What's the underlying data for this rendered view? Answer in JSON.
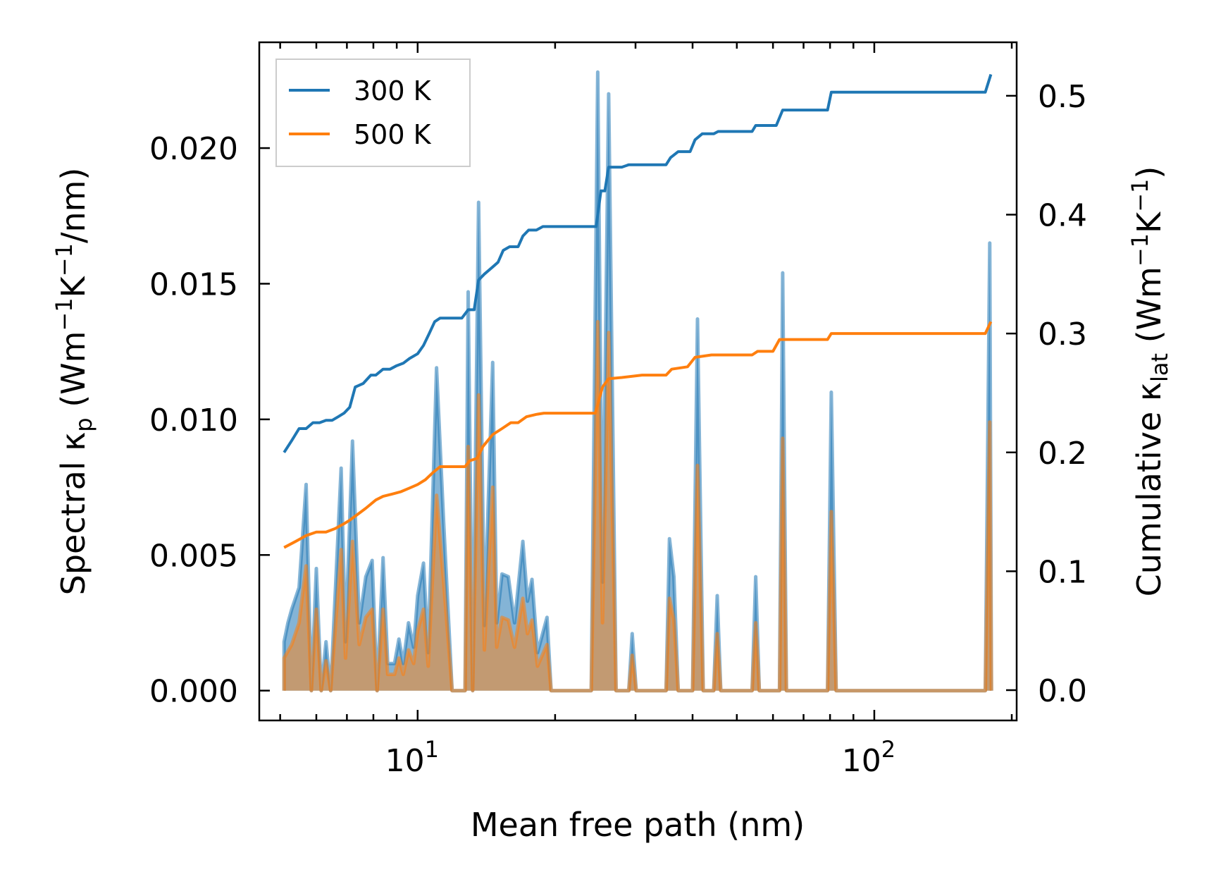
{
  "chart_data": {
    "type": "line",
    "title": "",
    "xlabel": "Mean free path (nm)",
    "x_scale": "log",
    "xlim": [
      4.5,
      205
    ],
    "x_ticks": [
      {
        "value": 10,
        "base": "10",
        "exp": "1"
      },
      {
        "value": 100,
        "base": "10",
        "exp": "2"
      }
    ],
    "y_left": {
      "label_parts": [
        "Spectral κ",
        "p",
        " (Wm",
        "−1",
        "K",
        "−1",
        "/nm)"
      ],
      "lim": [
        -0.0011,
        0.0239
      ],
      "ticks": [
        "0.000",
        "0.005",
        "0.010",
        "0.015",
        "0.020"
      ]
    },
    "y_right": {
      "label_parts": [
        "Cumulative κ",
        "lat",
        " (Wm",
        "−1",
        "K",
        "−1",
        ")"
      ],
      "lim": [
        -0.0255,
        0.545
      ],
      "ticks": [
        "0.0",
        "0.1",
        "0.2",
        "0.3",
        "0.4",
        "0.5"
      ]
    },
    "legend": {
      "position": "top-left"
    },
    "series": [
      {
        "name": "300 K",
        "color": "#1f77b4",
        "spectral": [
          [
            5.1,
            0
          ],
          [
            5.1,
            0.0018
          ],
          [
            5.2,
            0.0025
          ],
          [
            5.3,
            0.003
          ],
          [
            5.5,
            0.0038
          ],
          [
            5.7,
            0.0076
          ],
          [
            5.85,
            0
          ],
          [
            6.0,
            0.0045
          ],
          [
            6.15,
            0
          ],
          [
            6.3,
            0.0018
          ],
          [
            6.45,
            0
          ],
          [
            6.8,
            0.0082
          ],
          [
            6.95,
            0.0018
          ],
          [
            7.2,
            0.0092
          ],
          [
            7.45,
            0.0025
          ],
          [
            7.7,
            0.0042
          ],
          [
            7.95,
            0.0048
          ],
          [
            8.15,
            0
          ],
          [
            8.4,
            0.0049
          ],
          [
            8.6,
            0.001
          ],
          [
            8.9,
            0.001
          ],
          [
            9.1,
            0.0019
          ],
          [
            9.3,
            0.001
          ],
          [
            9.55,
            0.0025
          ],
          [
            9.8,
            0.0016
          ],
          [
            10.0,
            0.0035
          ],
          [
            10.3,
            0.0047
          ],
          [
            10.55,
            0.0014
          ],
          [
            11.0,
            0.0119
          ],
          [
            11.4,
            0.0062
          ],
          [
            11.9,
            0
          ],
          [
            12.7,
            0
          ],
          [
            12.9,
            0.0147
          ],
          [
            13.2,
            0
          ],
          [
            13.6,
            0.018
          ],
          [
            14.0,
            0.0024
          ],
          [
            14.6,
            0.0121
          ],
          [
            14.9,
            0.0025
          ],
          [
            15.3,
            0.0043
          ],
          [
            15.8,
            0.0042
          ],
          [
            16.3,
            0.0025
          ],
          [
            17.0,
            0.0055
          ],
          [
            17.4,
            0.0033
          ],
          [
            17.8,
            0.0041
          ],
          [
            18.3,
            0.0014
          ],
          [
            19.2,
            0.0027
          ],
          [
            19.6,
            0
          ],
          [
            24.0,
            0
          ],
          [
            24.8,
            0.0228
          ],
          [
            25.4,
            0.004
          ],
          [
            26.2,
            0.022
          ],
          [
            27.2,
            0
          ],
          [
            29.0,
            0
          ],
          [
            29.5,
            0.0021
          ],
          [
            30.1,
            0
          ],
          [
            35.0,
            0
          ],
          [
            35.6,
            0.0056
          ],
          [
            36.4,
            0.0042
          ],
          [
            37.2,
            0
          ],
          [
            40.0,
            0
          ],
          [
            41.0,
            0.0137
          ],
          [
            42.2,
            0
          ],
          [
            44.5,
            0
          ],
          [
            45.3,
            0.0035
          ],
          [
            46.1,
            0
          ],
          [
            54.0,
            0
          ],
          [
            55.0,
            0.0042
          ],
          [
            56.0,
            0
          ],
          [
            62.0,
            0
          ],
          [
            63.0,
            0.0154
          ],
          [
            64.2,
            0
          ],
          [
            79.0,
            0
          ],
          [
            80.5,
            0.011
          ],
          [
            82.5,
            0
          ],
          [
            175,
            0
          ],
          [
            179,
            0.0165
          ],
          [
            180.5,
            0
          ]
        ],
        "spectral_max_peak": 0.0228,
        "cumulative": [
          [
            5.1,
            0.2
          ],
          [
            5.3,
            0.21
          ],
          [
            5.5,
            0.22
          ],
          [
            5.7,
            0.22
          ],
          [
            5.9,
            0.225
          ],
          [
            6.1,
            0.225
          ],
          [
            6.3,
            0.227
          ],
          [
            6.5,
            0.227
          ],
          [
            6.7,
            0.23
          ],
          [
            6.9,
            0.233
          ],
          [
            7.1,
            0.238
          ],
          [
            7.3,
            0.255
          ],
          [
            7.6,
            0.258
          ],
          [
            7.9,
            0.265
          ],
          [
            8.1,
            0.265
          ],
          [
            8.4,
            0.27
          ],
          [
            8.7,
            0.27
          ],
          [
            9.0,
            0.273
          ],
          [
            9.3,
            0.275
          ],
          [
            9.6,
            0.279
          ],
          [
            10.0,
            0.283
          ],
          [
            10.3,
            0.29
          ],
          [
            10.6,
            0.3
          ],
          [
            10.9,
            0.31
          ],
          [
            11.2,
            0.313
          ],
          [
            11.9,
            0.313
          ],
          [
            12.5,
            0.313
          ],
          [
            12.9,
            0.32
          ],
          [
            13.3,
            0.32
          ],
          [
            13.6,
            0.345
          ],
          [
            14.0,
            0.35
          ],
          [
            14.6,
            0.356
          ],
          [
            15.0,
            0.36
          ],
          [
            15.4,
            0.37
          ],
          [
            15.9,
            0.373
          ],
          [
            16.6,
            0.373
          ],
          [
            17.0,
            0.382
          ],
          [
            17.5,
            0.387
          ],
          [
            18.2,
            0.387
          ],
          [
            18.8,
            0.39
          ],
          [
            19.6,
            0.39
          ],
          [
            24.6,
            0.39
          ],
          [
            25.2,
            0.42
          ],
          [
            25.7,
            0.42
          ],
          [
            26.2,
            0.44
          ],
          [
            28.0,
            0.44
          ],
          [
            29.0,
            0.442
          ],
          [
            31.0,
            0.442
          ],
          [
            35.0,
            0.442
          ],
          [
            35.8,
            0.448
          ],
          [
            37.2,
            0.453
          ],
          [
            39.5,
            0.453
          ],
          [
            40.5,
            0.463
          ],
          [
            42.0,
            0.468
          ],
          [
            44.5,
            0.468
          ],
          [
            45.5,
            0.47
          ],
          [
            54.0,
            0.47
          ],
          [
            55.0,
            0.475
          ],
          [
            61.0,
            0.475
          ],
          [
            63.0,
            0.488
          ],
          [
            79.0,
            0.488
          ],
          [
            80.5,
            0.503
          ],
          [
            175,
            0.503
          ],
          [
            180,
            0.518
          ]
        ]
      },
      {
        "name": "500 K",
        "color": "#ff7f0e",
        "spectral": [
          [
            5.1,
            0
          ],
          [
            5.1,
            0.0012
          ],
          [
            5.3,
            0.0017
          ],
          [
            5.5,
            0.0025
          ],
          [
            5.7,
            0.0046
          ],
          [
            5.85,
            0
          ],
          [
            6.0,
            0.003
          ],
          [
            6.15,
            0
          ],
          [
            6.3,
            0.0011
          ],
          [
            6.45,
            0
          ],
          [
            6.8,
            0.0052
          ],
          [
            6.95,
            0.0012
          ],
          [
            7.2,
            0.0055
          ],
          [
            7.45,
            0.0017
          ],
          [
            7.7,
            0.0027
          ],
          [
            7.95,
            0.003
          ],
          [
            8.15,
            0
          ],
          [
            8.4,
            0.003
          ],
          [
            8.6,
            0.0006
          ],
          [
            8.9,
            0.0006
          ],
          [
            9.1,
            0.0012
          ],
          [
            9.3,
            0.0006
          ],
          [
            9.55,
            0.0015
          ],
          [
            9.8,
            0.001
          ],
          [
            10.0,
            0.0022
          ],
          [
            10.3,
            0.003
          ],
          [
            10.55,
            0.0009
          ],
          [
            11.0,
            0.0072
          ],
          [
            11.4,
            0.004
          ],
          [
            11.9,
            0
          ],
          [
            12.7,
            0
          ],
          [
            12.9,
            0.009
          ],
          [
            13.2,
            0
          ],
          [
            13.6,
            0.0109
          ],
          [
            14.0,
            0.0015
          ],
          [
            14.6,
            0.0075
          ],
          [
            14.9,
            0.0016
          ],
          [
            15.3,
            0.0027
          ],
          [
            15.8,
            0.0026
          ],
          [
            16.3,
            0.0016
          ],
          [
            17.0,
            0.0034
          ],
          [
            17.4,
            0.0021
          ],
          [
            17.8,
            0.0026
          ],
          [
            18.3,
            0.0009
          ],
          [
            19.2,
            0.0017
          ],
          [
            19.6,
            0
          ],
          [
            24.0,
            0
          ],
          [
            24.8,
            0.0136
          ],
          [
            25.4,
            0.0025
          ],
          [
            26.2,
            0.0132
          ],
          [
            27.2,
            0
          ],
          [
            29.0,
            0
          ],
          [
            29.5,
            0.0013
          ],
          [
            30.1,
            0
          ],
          [
            35.0,
            0
          ],
          [
            35.6,
            0.0034
          ],
          [
            36.4,
            0.0026
          ],
          [
            37.2,
            0
          ],
          [
            40.0,
            0
          ],
          [
            41.0,
            0.0083
          ],
          [
            42.2,
            0
          ],
          [
            44.5,
            0
          ],
          [
            45.3,
            0.0021
          ],
          [
            46.1,
            0
          ],
          [
            54.0,
            0
          ],
          [
            55.0,
            0.0025
          ],
          [
            56.0,
            0
          ],
          [
            62.0,
            0
          ],
          [
            63.0,
            0.0093
          ],
          [
            64.2,
            0
          ],
          [
            79.0,
            0
          ],
          [
            80.5,
            0.0066
          ],
          [
            82.5,
            0
          ],
          [
            175,
            0
          ],
          [
            179,
            0.0099
          ],
          [
            180.5,
            0
          ]
        ],
        "cumulative": [
          [
            5.1,
            0.12
          ],
          [
            5.4,
            0.125
          ],
          [
            5.7,
            0.13
          ],
          [
            6.0,
            0.133
          ],
          [
            6.3,
            0.133
          ],
          [
            6.6,
            0.136
          ],
          [
            6.9,
            0.14
          ],
          [
            7.1,
            0.143
          ],
          [
            7.4,
            0.148
          ],
          [
            7.7,
            0.153
          ],
          [
            8.1,
            0.16
          ],
          [
            8.4,
            0.163
          ],
          [
            8.8,
            0.165
          ],
          [
            9.2,
            0.167
          ],
          [
            9.6,
            0.17
          ],
          [
            10.0,
            0.173
          ],
          [
            10.4,
            0.177
          ],
          [
            10.8,
            0.183
          ],
          [
            11.2,
            0.188
          ],
          [
            11.9,
            0.188
          ],
          [
            12.7,
            0.188
          ],
          [
            13.0,
            0.193
          ],
          [
            13.5,
            0.195
          ],
          [
            13.9,
            0.205
          ],
          [
            14.6,
            0.215
          ],
          [
            15.3,
            0.22
          ],
          [
            16.0,
            0.225
          ],
          [
            16.6,
            0.225
          ],
          [
            17.3,
            0.23
          ],
          [
            18.2,
            0.232
          ],
          [
            18.9,
            0.233
          ],
          [
            24.5,
            0.233
          ],
          [
            25.4,
            0.255
          ],
          [
            26.2,
            0.262
          ],
          [
            28.0,
            0.263
          ],
          [
            31.0,
            0.265
          ],
          [
            35.0,
            0.265
          ],
          [
            36.0,
            0.27
          ],
          [
            39.0,
            0.272
          ],
          [
            40.5,
            0.28
          ],
          [
            44.0,
            0.282
          ],
          [
            54.0,
            0.282
          ],
          [
            55.5,
            0.285
          ],
          [
            60.0,
            0.285
          ],
          [
            62.0,
            0.295
          ],
          [
            79.0,
            0.295
          ],
          [
            80.5,
            0.3
          ],
          [
            175,
            0.3
          ],
          [
            180,
            0.31
          ]
        ]
      }
    ]
  }
}
